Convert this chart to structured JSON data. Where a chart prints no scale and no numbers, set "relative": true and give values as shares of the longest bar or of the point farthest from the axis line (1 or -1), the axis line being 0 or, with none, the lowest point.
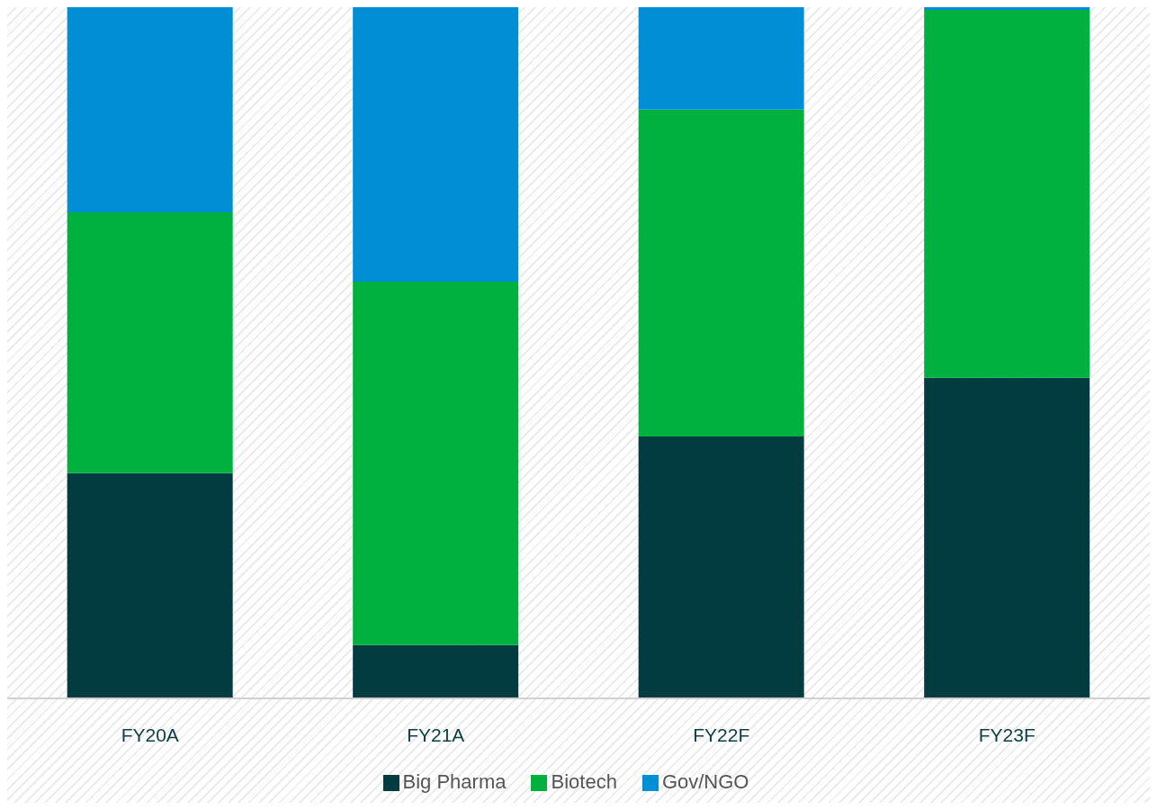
{
  "chart_data": {
    "type": "bar",
    "stacked": true,
    "relative": true,
    "legend": "bottom",
    "categories": [
      "FY20A",
      "FY21A",
      "FY22F",
      "FY23F"
    ],
    "series": [
      {
        "name": "Big Pharma",
        "color": "#023c40",
        "values": [
          0.326,
          0.077,
          0.379,
          0.464
        ]
      },
      {
        "name": "Biotech",
        "color": "#00b140",
        "values": [
          0.377,
          0.526,
          0.473,
          0.532
        ]
      },
      {
        "name": "Gov/NGO",
        "color": "#008fd5",
        "values": [
          0.297,
          0.397,
          0.148,
          0.004
        ]
      }
    ]
  }
}
